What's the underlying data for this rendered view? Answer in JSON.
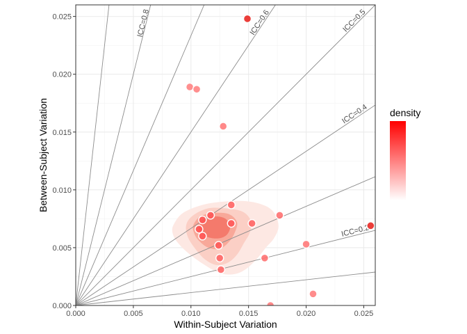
{
  "chart_data": {
    "type": "scatter",
    "xlabel": "Within-Subject Variation",
    "ylabel": "Between-Subject Variation",
    "xlim": [
      0,
      0.026
    ],
    "ylim": [
      0,
      0.026
    ],
    "x_ticks": [
      0.0,
      0.005,
      0.01,
      0.015,
      0.02,
      0.025
    ],
    "y_ticks": [
      0.0,
      0.005,
      0.01,
      0.015,
      0.02,
      0.025
    ],
    "x_tick_labels": [
      "0.000",
      "0.005",
      "0.010",
      "0.015",
      "0.020",
      "0.025"
    ],
    "y_tick_labels": [
      "0.000",
      "0.005",
      "0.010",
      "0.015",
      "0.020",
      "0.025"
    ],
    "legend": {
      "title": "density",
      "placement": "right",
      "colors": [
        "#ffffff",
        "#ff0000"
      ]
    },
    "icc_lines": [
      {
        "icc": 0.1,
        "label": null
      },
      {
        "icc": 0.2,
        "label": "ICC=0.2"
      },
      {
        "icc": 0.3,
        "label": null
      },
      {
        "icc": 0.4,
        "label": "ICC=0.4"
      },
      {
        "icc": 0.5,
        "label": "ICC=0.5"
      },
      {
        "icc": 0.6,
        "label": "ICC=0.6"
      },
      {
        "icc": 0.7,
        "label": null
      },
      {
        "icc": 0.8,
        "label": "ICC=0.8"
      },
      {
        "icc": 0.9,
        "label": null
      }
    ],
    "points": [
      {
        "x": 0.0149,
        "y": 0.0248,
        "density": 0.02
      },
      {
        "x": 0.0099,
        "y": 0.0189,
        "density": 0.05
      },
      {
        "x": 0.0105,
        "y": 0.0187,
        "density": 0.05
      },
      {
        "x": 0.0128,
        "y": 0.0155,
        "density": 0.15
      },
      {
        "x": 0.0135,
        "y": 0.0087,
        "density": 0.55
      },
      {
        "x": 0.0177,
        "y": 0.0078,
        "density": 0.35
      },
      {
        "x": 0.0117,
        "y": 0.0078,
        "density": 0.75
      },
      {
        "x": 0.011,
        "y": 0.0074,
        "density": 0.8
      },
      {
        "x": 0.0135,
        "y": 0.0071,
        "density": 0.75
      },
      {
        "x": 0.0153,
        "y": 0.0071,
        "density": 0.55
      },
      {
        "x": 0.0107,
        "y": 0.0066,
        "density": 0.8
      },
      {
        "x": 0.011,
        "y": 0.006,
        "density": 0.8
      },
      {
        "x": 0.0124,
        "y": 0.0052,
        "density": 0.7
      },
      {
        "x": 0.02,
        "y": 0.0053,
        "density": 0.2
      },
      {
        "x": 0.0125,
        "y": 0.0041,
        "density": 0.5
      },
      {
        "x": 0.0164,
        "y": 0.0041,
        "density": 0.35
      },
      {
        "x": 0.0126,
        "y": 0.0031,
        "density": 0.45
      },
      {
        "x": 0.0206,
        "y": 0.001,
        "density": 0.1
      },
      {
        "x": 0.0169,
        "y": 0.0,
        "density": 0.15
      },
      {
        "x": 0.0256,
        "y": 0.0069,
        "density": 0.02
      }
    ],
    "density_contours": [
      {
        "level": 1,
        "points": [
          [
            0.0085,
            0.007
          ],
          [
            0.0093,
            0.008
          ],
          [
            0.011,
            0.0087
          ],
          [
            0.013,
            0.009
          ],
          [
            0.015,
            0.009
          ],
          [
            0.0165,
            0.0086
          ],
          [
            0.0173,
            0.0079
          ],
          [
            0.0176,
            0.0068
          ],
          [
            0.0172,
            0.0058
          ],
          [
            0.0165,
            0.005
          ],
          [
            0.0157,
            0.004
          ],
          [
            0.0147,
            0.0031
          ],
          [
            0.0137,
            0.0027
          ],
          [
            0.0125,
            0.0028
          ],
          [
            0.0112,
            0.0035
          ],
          [
            0.0098,
            0.0045
          ],
          [
            0.0088,
            0.0055
          ],
          [
            0.0084,
            0.0063
          ]
        ]
      },
      {
        "level": 2,
        "points": [
          [
            0.0096,
            0.007
          ],
          [
            0.0102,
            0.0078
          ],
          [
            0.0115,
            0.0084
          ],
          [
            0.013,
            0.0084
          ],
          [
            0.0145,
            0.0081
          ],
          [
            0.0152,
            0.0073
          ],
          [
            0.0151,
            0.0063
          ],
          [
            0.0146,
            0.0054
          ],
          [
            0.014,
            0.0044
          ],
          [
            0.0132,
            0.0037
          ],
          [
            0.0122,
            0.0035
          ],
          [
            0.0112,
            0.004
          ],
          [
            0.0103,
            0.005
          ],
          [
            0.0097,
            0.006
          ]
        ]
      },
      {
        "level": 3,
        "points": [
          [
            0.0102,
            0.0069
          ],
          [
            0.0108,
            0.0077
          ],
          [
            0.012,
            0.008
          ],
          [
            0.0133,
            0.0079
          ],
          [
            0.014,
            0.0072
          ],
          [
            0.0138,
            0.0063
          ],
          [
            0.0133,
            0.0055
          ],
          [
            0.0125,
            0.0049
          ],
          [
            0.0115,
            0.005
          ],
          [
            0.0107,
            0.0056
          ],
          [
            0.0103,
            0.0062
          ]
        ]
      },
      {
        "level": 4,
        "points": [
          [
            0.0107,
            0.0068
          ],
          [
            0.0112,
            0.0074
          ],
          [
            0.0121,
            0.0077
          ],
          [
            0.013,
            0.0075
          ],
          [
            0.0134,
            0.0068
          ],
          [
            0.0131,
            0.0061
          ],
          [
            0.0124,
            0.0058
          ],
          [
            0.0115,
            0.0059
          ],
          [
            0.0109,
            0.0063
          ]
        ]
      }
    ]
  }
}
